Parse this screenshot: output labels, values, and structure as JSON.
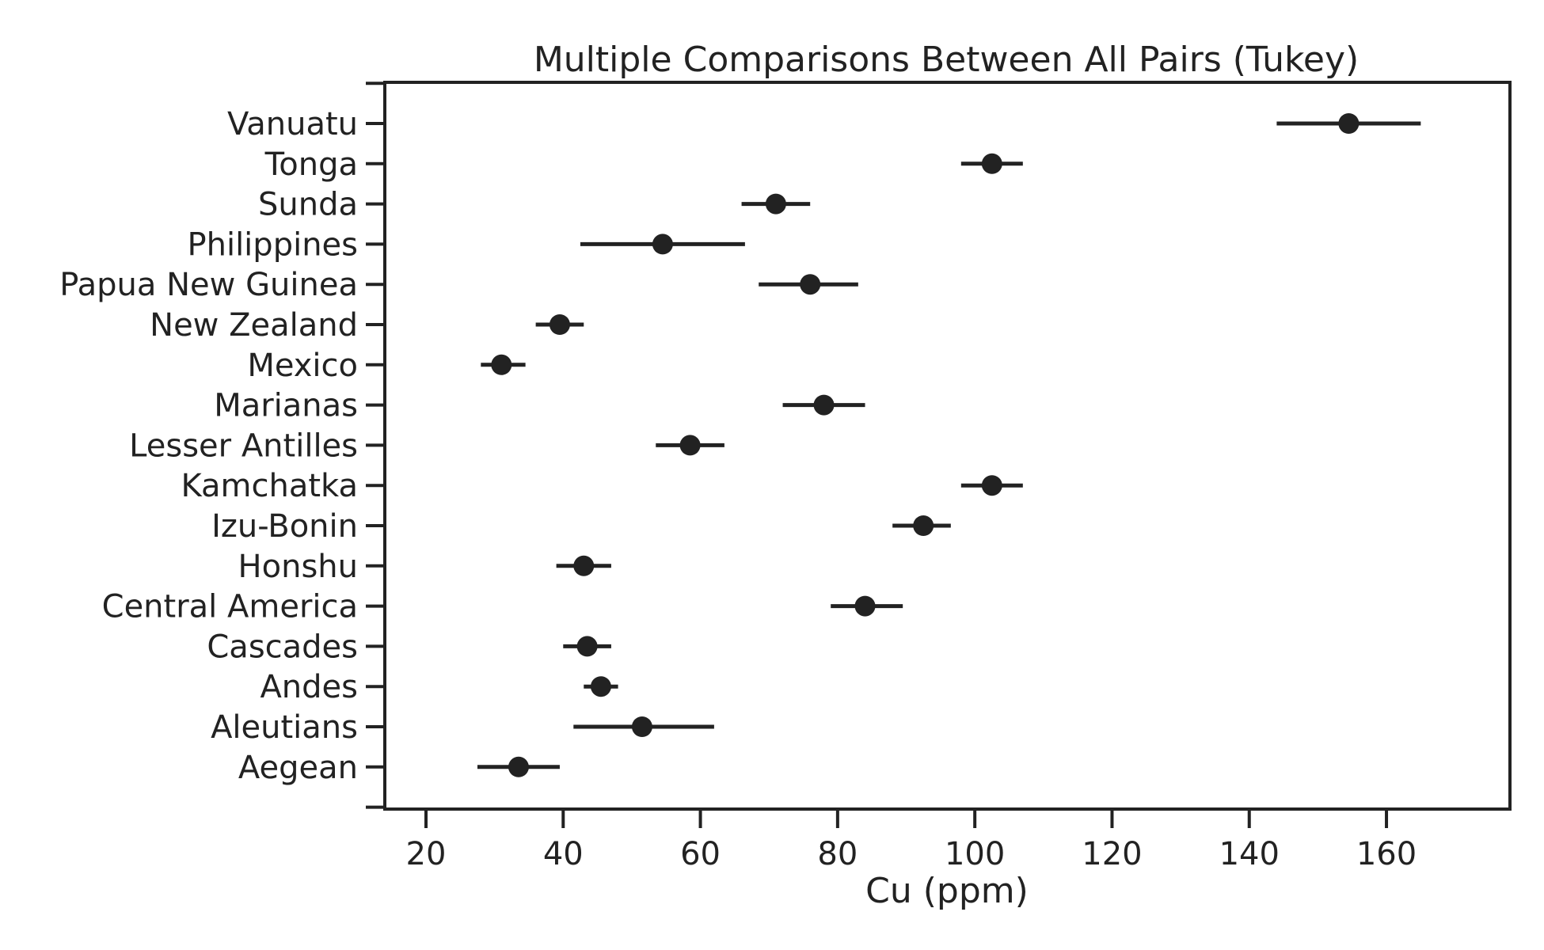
{
  "chart_data": {
    "type": "scatter",
    "title": "Multiple Comparisons Between All Pairs (Tukey)",
    "xlabel": "Cu (ppm)",
    "ylabel": "",
    "xlim": [
      14,
      178
    ],
    "xticks": [
      20,
      40,
      60,
      80,
      100,
      120,
      140,
      160
    ],
    "grid": false,
    "categories": [
      "Vanuatu",
      "Tonga",
      "Sunda",
      "Philippines",
      "Papua New Guinea",
      "New Zealand",
      "Mexico",
      "Marianas",
      "Lesser Antilles",
      "Kamchatka",
      "Izu-Bonin",
      "Honshu",
      "Central America",
      "Cascades",
      "Andes",
      "Aleutians",
      "Aegean"
    ],
    "series": [
      {
        "means": [
          154.5,
          102.5,
          71.0,
          54.5,
          76.0,
          39.5,
          31.0,
          78.0,
          58.5,
          102.5,
          92.5,
          43.0,
          84.0,
          43.5,
          45.5,
          51.5,
          33.5
        ],
        "lower": [
          144.0,
          98.0,
          66.0,
          42.5,
          68.5,
          36.0,
          28.0,
          72.0,
          53.5,
          98.0,
          88.0,
          39.0,
          79.0,
          40.0,
          43.0,
          41.5,
          27.5
        ],
        "upper": [
          165.0,
          107.0,
          76.0,
          66.5,
          83.0,
          43.0,
          34.5,
          84.0,
          63.5,
          107.0,
          96.5,
          47.0,
          89.5,
          47.0,
          48.0,
          62.0,
          39.5
        ]
      }
    ]
  }
}
